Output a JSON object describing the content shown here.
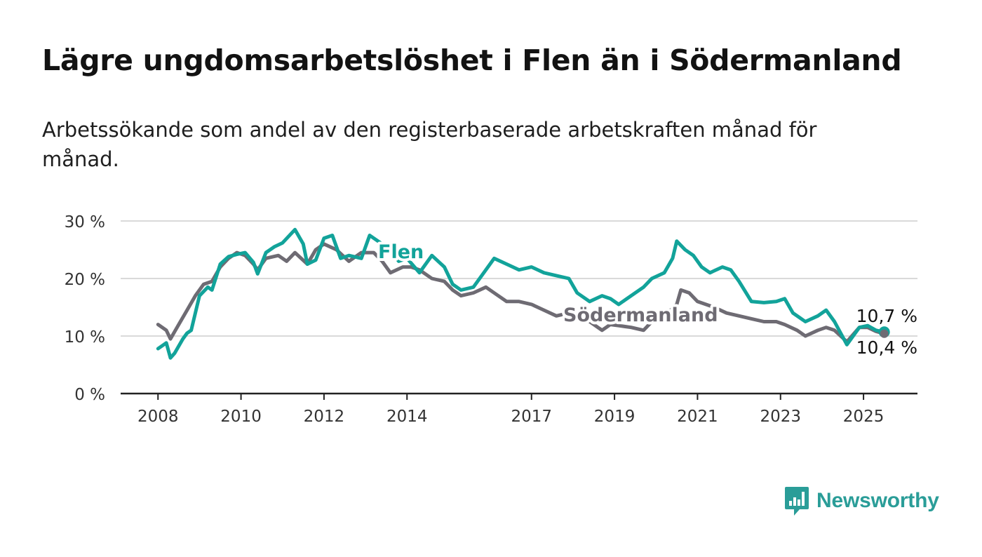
{
  "title": "Lägre ungdomsarbetslöshet i Flen än i Södermanland",
  "subtitle": "Arbetssökande som andel av den registerbaserade arbetskraften månad för månad.",
  "brand": {
    "name": "Newsworthy",
    "color": "#2a9d98"
  },
  "colors": {
    "flen": "#12a39a",
    "sodermanland": "#6e6b73",
    "grid": "#d9d9d9",
    "axis": "#222222"
  },
  "chart_data": {
    "type": "line",
    "ylim": [
      0,
      30
    ],
    "yticks": [
      0,
      10,
      20,
      30
    ],
    "ytick_labels": [
      "0 %",
      "10 %",
      "20 %",
      "30 %"
    ],
    "xlim": [
      2007.1,
      2026.3
    ],
    "xticks": [
      2008,
      2010,
      2012,
      2014,
      2017,
      2019,
      2021,
      2023,
      2025
    ],
    "xtick_labels": [
      "2008",
      "2010",
      "2012",
      "2014",
      "2017",
      "2019",
      "2021",
      "2023",
      "2025"
    ],
    "grid": true,
    "series": [
      {
        "name": "Flen",
        "color": "#12a39a",
        "end_label": "10,7 %",
        "x": [
          2008.0,
          2008.2,
          2008.3,
          2008.4,
          2008.6,
          2008.7,
          2008.8,
          2009.0,
          2009.2,
          2009.3,
          2009.5,
          2009.7,
          2009.9,
          2010.1,
          2010.3,
          2010.4,
          2010.6,
          2010.8,
          2011.0,
          2011.3,
          2011.5,
          2011.6,
          2011.8,
          2012.0,
          2012.2,
          2012.4,
          2012.6,
          2012.9,
          2013.1,
          2013.4,
          2013.6,
          2013.8,
          2014.0,
          2014.3,
          2014.6,
          2014.9,
          2015.1,
          2015.3,
          2015.6,
          2015.9,
          2016.1,
          2016.4,
          2016.7,
          2017.0,
          2017.3,
          2017.6,
          2017.9,
          2018.1,
          2018.4,
          2018.7,
          2018.9,
          2019.1,
          2019.4,
          2019.7,
          2019.9,
          2020.2,
          2020.4,
          2020.5,
          2020.7,
          2020.9,
          2021.1,
          2021.3,
          2021.6,
          2021.8,
          2022.0,
          2022.3,
          2022.6,
          2022.9,
          2023.1,
          2023.3,
          2023.6,
          2023.9,
          2024.1,
          2024.3,
          2024.6,
          2024.9,
          2025.1,
          2025.3,
          2025.5
        ],
        "values": [
          7.8,
          8.8,
          6.2,
          7.0,
          9.5,
          10.5,
          11.0,
          17.0,
          18.5,
          18.0,
          22.5,
          23.8,
          24.2,
          24.5,
          22.8,
          20.8,
          24.5,
          25.5,
          26.2,
          28.5,
          26.0,
          22.5,
          23.2,
          27.0,
          27.5,
          23.5,
          24.0,
          23.5,
          27.5,
          26.0,
          25.0,
          23.0,
          23.5,
          21.0,
          24.0,
          22.0,
          19.0,
          18.0,
          18.5,
          21.5,
          23.5,
          22.5,
          21.5,
          22.0,
          21.0,
          20.5,
          20.0,
          17.5,
          16.0,
          17.0,
          16.5,
          15.5,
          17.0,
          18.5,
          20.0,
          21.0,
          23.5,
          26.5,
          25.0,
          24.0,
          22.0,
          21.0,
          22.0,
          21.5,
          19.5,
          16.0,
          15.8,
          16.0,
          16.5,
          14.0,
          12.5,
          13.5,
          14.5,
          12.5,
          8.5,
          11.5,
          11.8,
          11.0,
          10.7
        ]
      },
      {
        "name": "Södermanland",
        "color": "#6e6b73",
        "end_label": "10,4 %",
        "x": [
          2008.0,
          2008.2,
          2008.3,
          2008.5,
          2008.7,
          2008.9,
          2009.1,
          2009.3,
          2009.5,
          2009.7,
          2009.9,
          2010.1,
          2010.3,
          2010.4,
          2010.6,
          2010.9,
          2011.1,
          2011.3,
          2011.6,
          2011.8,
          2012.0,
          2012.3,
          2012.6,
          2012.9,
          2013.2,
          2013.4,
          2013.6,
          2013.9,
          2014.1,
          2014.3,
          2014.6,
          2014.9,
          2015.1,
          2015.3,
          2015.6,
          2015.9,
          2016.1,
          2016.4,
          2016.7,
          2017.0,
          2017.3,
          2017.6,
          2017.9,
          2018.1,
          2018.4,
          2018.7,
          2018.9,
          2019.1,
          2019.4,
          2019.7,
          2019.9,
          2020.2,
          2020.5,
          2020.6,
          2020.8,
          2021.0,
          2021.2,
          2021.4,
          2021.7,
          2022.0,
          2022.3,
          2022.6,
          2022.9,
          2023.1,
          2023.4,
          2023.6,
          2023.9,
          2024.1,
          2024.3,
          2024.6,
          2024.9,
          2025.1,
          2025.3,
          2025.5
        ],
        "values": [
          12.0,
          11.0,
          9.5,
          12.0,
          14.5,
          17.0,
          19.0,
          19.5,
          22.0,
          23.5,
          24.5,
          24.0,
          22.5,
          21.5,
          23.5,
          24.0,
          23.0,
          24.5,
          22.5,
          25.0,
          26.0,
          25.0,
          23.0,
          24.5,
          24.5,
          23.0,
          21.0,
          22.0,
          22.0,
          21.5,
          20.0,
          19.5,
          18.0,
          17.0,
          17.5,
          18.5,
          17.5,
          16.0,
          16.0,
          15.5,
          14.5,
          13.5,
          14.0,
          13.0,
          12.5,
          11.0,
          12.0,
          11.8,
          11.5,
          11.0,
          12.5,
          13.5,
          15.5,
          18.0,
          17.5,
          16.0,
          15.5,
          15.0,
          14.0,
          13.5,
          13.0,
          12.5,
          12.5,
          12.0,
          11.0,
          10.0,
          11.0,
          11.5,
          11.0,
          9.0,
          11.5,
          11.5,
          10.8,
          10.4
        ]
      }
    ],
    "annotations": [
      "Flen",
      "Södermanland"
    ]
  }
}
